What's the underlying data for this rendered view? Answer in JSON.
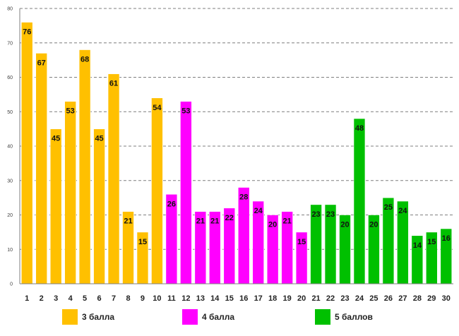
{
  "chart_data": {
    "type": "bar",
    "title": "",
    "xlabel": "",
    "ylabel": "",
    "ylim": [
      0,
      80
    ],
    "ytick_step": 10,
    "grid": true,
    "legend_position": "bottom",
    "categories": [
      "1",
      "2",
      "3",
      "4",
      "5",
      "6",
      "7",
      "8",
      "9",
      "10",
      "11",
      "12",
      "13",
      "14",
      "15",
      "16",
      "17",
      "18",
      "19",
      "20",
      "21",
      "22",
      "23",
      "24",
      "25",
      "26",
      "27",
      "28",
      "29",
      "30"
    ],
    "values": [
      76,
      67,
      45,
      53,
      68,
      45,
      61,
      21,
      15,
      54,
      26,
      53,
      21,
      21,
      22,
      28,
      24,
      20,
      21,
      15,
      23,
      23,
      20,
      48,
      20,
      25,
      24,
      14,
      15,
      16
    ],
    "series": [
      {
        "name": "3 балла",
        "color": "#FFC000",
        "from": 1,
        "to": 10
      },
      {
        "name": "4 балла",
        "color": "#FF00FF",
        "from": 11,
        "to": 20
      },
      {
        "name": "5 баллов",
        "color": "#00C000",
        "from": 21,
        "to": 30
      }
    ]
  }
}
